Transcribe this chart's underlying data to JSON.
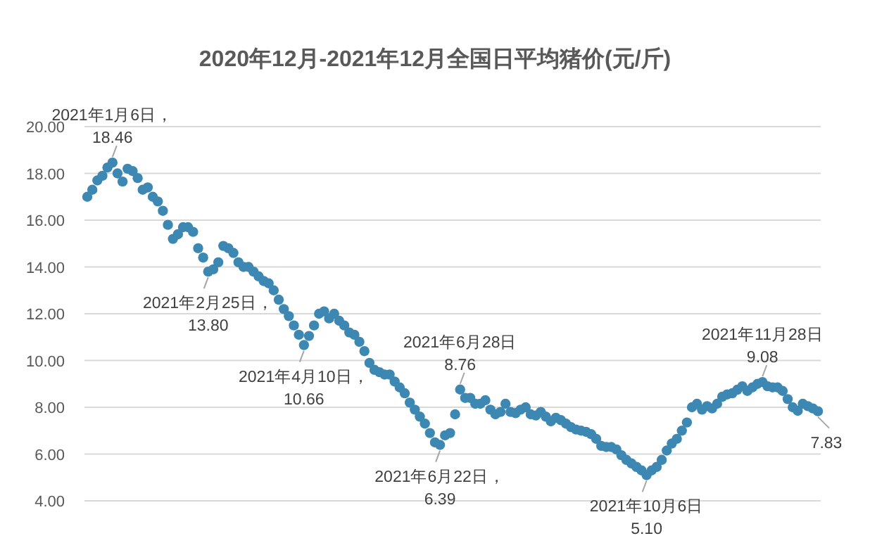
{
  "chart_data": {
    "type": "scatter",
    "title": "2020年12月-2021年12月全国日平均猪价(元/斤)",
    "categories": [
      null,
      null,
      null,
      null,
      null,
      null,
      null,
      null,
      null,
      null,
      null,
      null,
      null,
      null,
      null,
      null,
      null,
      null,
      null,
      null,
      null,
      null,
      null,
      null,
      null,
      null,
      null,
      null,
      null,
      null,
      null,
      null,
      null,
      null,
      null,
      null,
      null,
      null,
      null,
      null,
      null,
      null,
      null,
      null,
      null,
      null,
      null,
      null,
      null,
      null,
      null,
      null,
      null,
      null,
      null,
      null,
      null,
      null,
      null,
      null,
      null,
      null,
      null,
      null,
      null,
      null,
      null,
      null,
      null,
      null,
      null,
      null,
      null,
      null,
      null,
      null,
      null,
      null,
      null,
      null,
      null,
      null,
      null,
      null,
      null,
      null,
      null,
      null,
      null,
      null,
      null,
      null,
      null,
      null,
      null,
      null,
      null,
      null,
      null,
      null,
      null,
      null,
      null,
      null,
      null,
      null,
      null,
      null,
      null,
      null,
      null,
      null,
      null,
      null,
      null,
      null,
      null,
      null,
      null,
      null,
      null,
      null,
      null,
      null,
      null,
      null,
      null,
      null,
      null,
      null,
      null,
      null,
      null,
      null,
      null,
      null,
      null,
      null,
      null,
      null,
      null,
      null,
      null,
      null,
      null,
      null
    ],
    "series": [
      {
        "color": "#3d87b3",
        "values": [
          17.0,
          17.3,
          17.7,
          17.9,
          18.25,
          18.46,
          18.0,
          17.65,
          18.2,
          18.1,
          17.8,
          17.3,
          17.4,
          17.0,
          16.8,
          16.4,
          15.8,
          15.2,
          15.4,
          15.7,
          15.7,
          15.5,
          14.8,
          14.4,
          13.8,
          13.9,
          14.2,
          14.9,
          14.8,
          14.6,
          14.2,
          14.0,
          14.0,
          13.8,
          13.6,
          13.4,
          13.3,
          13.0,
          12.6,
          12.2,
          11.9,
          11.5,
          11.1,
          10.66,
          11.05,
          11.5,
          12.0,
          12.1,
          11.8,
          12.0,
          11.7,
          11.5,
          11.2,
          11.1,
          10.8,
          10.4,
          9.9,
          9.6,
          9.5,
          9.4,
          9.4,
          9.1,
          8.85,
          8.6,
          8.2,
          7.9,
          7.6,
          7.3,
          6.9,
          6.5,
          6.39,
          6.8,
          6.9,
          7.7,
          8.76,
          8.4,
          8.4,
          8.15,
          8.15,
          8.3,
          7.9,
          7.7,
          7.8,
          8.15,
          7.8,
          7.75,
          7.9,
          8.0,
          7.7,
          7.65,
          7.8,
          7.6,
          7.4,
          7.55,
          7.45,
          7.3,
          7.15,
          7.05,
          7.0,
          6.95,
          6.85,
          6.65,
          6.35,
          6.3,
          6.3,
          6.2,
          5.95,
          5.75,
          5.6,
          5.45,
          5.3,
          5.1,
          5.3,
          5.45,
          5.75,
          6.15,
          6.45,
          6.65,
          7.0,
          7.35,
          8.0,
          8.15,
          7.9,
          8.05,
          7.95,
          8.15,
          8.45,
          8.55,
          8.6,
          8.75,
          8.9,
          8.7,
          8.85,
          9.0,
          9.08,
          8.9,
          8.85,
          8.85,
          8.7,
          8.35,
          8.0,
          7.85,
          8.15,
          8.05,
          7.95,
          7.83
        ]
      }
    ],
    "marker": "circle",
    "grid": "y",
    "ylim": [
      4,
      20
    ],
    "yticks": [
      {
        "value": 4,
        "label": "4.00"
      },
      {
        "value": 6,
        "label": "6.00"
      },
      {
        "value": 8,
        "label": "8.00"
      },
      {
        "value": 10,
        "label": "10.00"
      },
      {
        "value": 12,
        "label": "12.00"
      },
      {
        "value": 14,
        "label": "14.00"
      },
      {
        "value": 16,
        "label": "16.00"
      },
      {
        "value": 18,
        "label": "18.00"
      },
      {
        "value": 20,
        "label": "20.00"
      }
    ],
    "annotations": [
      {
        "text": "2021年1月6日，\n18.46",
        "y": 18.46
      },
      {
        "text": "2021年2月25日，\n13.80",
        "y": 13.8
      },
      {
        "text": "2021年4月10日，\n10.66",
        "y": 10.66
      },
      {
        "text": "2021年6月22日，\n6.39",
        "y": 6.39
      },
      {
        "text": "2021年6月28日\n8.76",
        "y": 8.76
      },
      {
        "text": "2021年10月6日\n5.10",
        "y": 5.1
      },
      {
        "text": "2021年11月28日\n9.08",
        "y": 9.08
      },
      {
        "text": "7.83",
        "y": 7.83
      }
    ]
  }
}
